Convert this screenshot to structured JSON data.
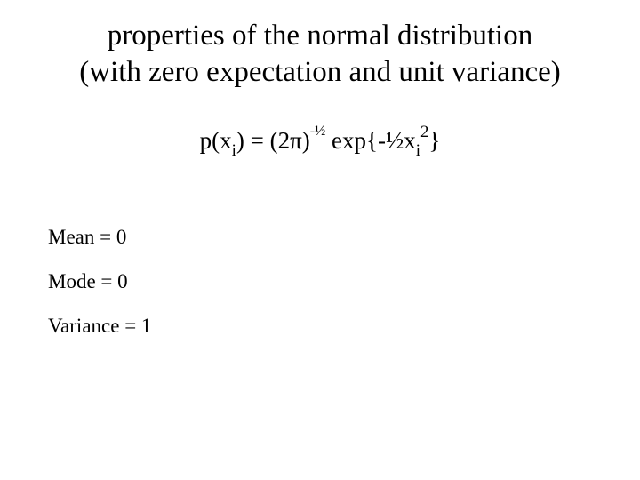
{
  "title": {
    "line1": "properties of the normal distribution",
    "line2": "(with zero expectation and unit variance)"
  },
  "formula": {
    "p_open": "p(x",
    "sub_i1": "i",
    "close_eq": ") = (2",
    "pi": "π",
    "close_paren": ")",
    "neg_half_sup": "-½",
    "exp_open": " exp{-½x",
    "sub_i2": "i",
    "sq": "2",
    "close_brace": "}"
  },
  "props": {
    "mean": "Mean = 0",
    "mode": "Mode  = 0",
    "variance": "Variance = 1"
  },
  "colors": {
    "background": "#ffffff",
    "text": "#000000"
  }
}
